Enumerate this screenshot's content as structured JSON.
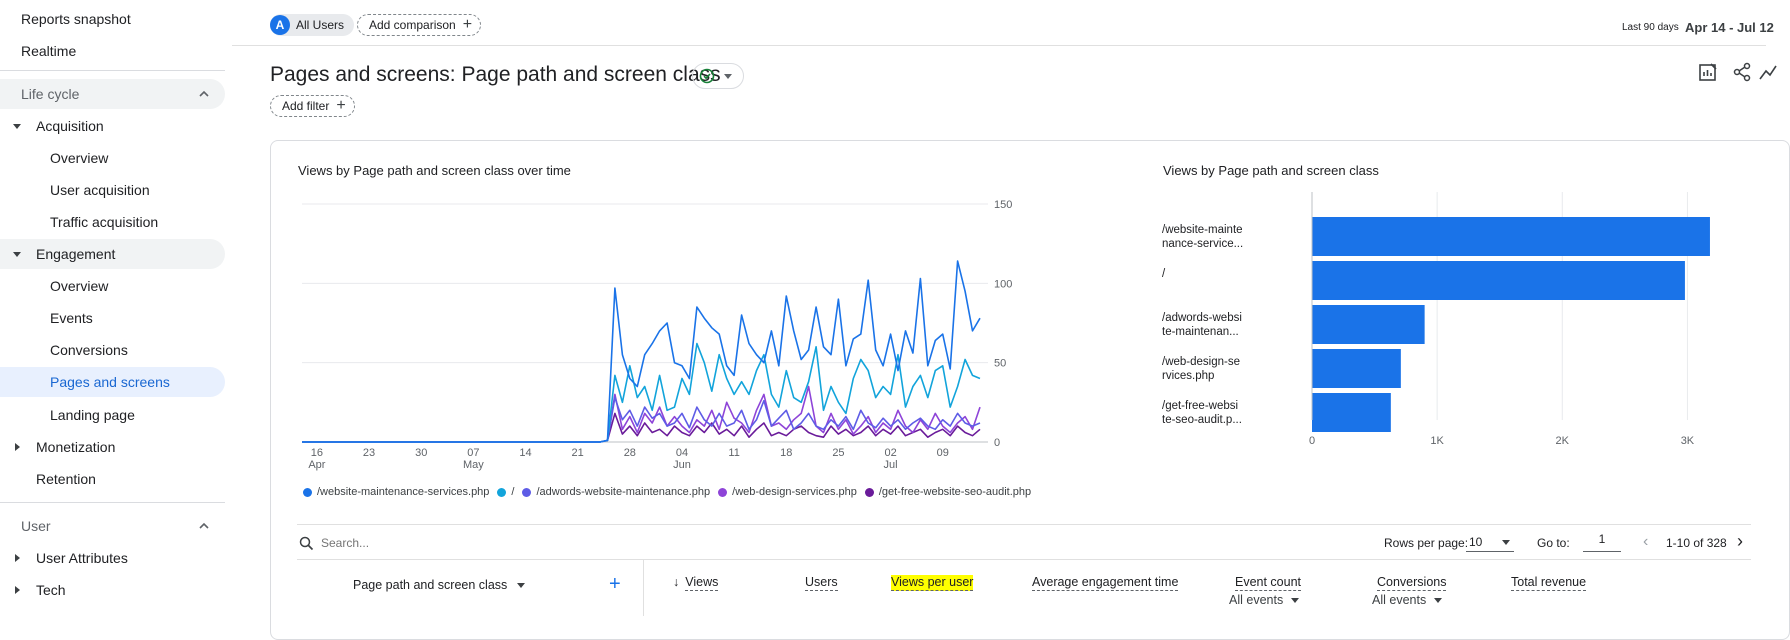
{
  "sidebar": {
    "reports_snapshot": "Reports snapshot",
    "realtime": "Realtime",
    "lifecycle_label": "Life cycle",
    "acquisition": "Acquisition",
    "acq_overview": "Overview",
    "user_acquisition": "User acquisition",
    "traffic_acquisition": "Traffic acquisition",
    "engagement": "Engagement",
    "eng_overview": "Overview",
    "events": "Events",
    "conversions": "Conversions",
    "pages_and_screens": "Pages and screens",
    "landing_page": "Landing page",
    "monetization": "Monetization",
    "retention": "Retention",
    "user_label": "User",
    "user_attributes": "User Attributes",
    "tech": "Tech"
  },
  "header": {
    "segment_avatar": "A",
    "segment_label": "All Users",
    "add_comparison": "Add comparison",
    "range_label": "Last 90 days",
    "range_value": "Apr 14 - Jul 12"
  },
  "page": {
    "title": "Pages and screens: Page path and screen class",
    "add_filter": "Add filter"
  },
  "line_chart": {
    "title": "Views by Page path and screen class over time",
    "y_ticks": [
      "150",
      "100",
      "50",
      "0"
    ],
    "x_ticks": [
      {
        "day": "16",
        "month": "Apr"
      },
      {
        "day": "23",
        "month": ""
      },
      {
        "day": "30",
        "month": ""
      },
      {
        "day": "07",
        "month": "May"
      },
      {
        "day": "14",
        "month": ""
      },
      {
        "day": "21",
        "month": ""
      },
      {
        "day": "28",
        "month": ""
      },
      {
        "day": "04",
        "month": "Jun"
      },
      {
        "day": "11",
        "month": ""
      },
      {
        "day": "18",
        "month": ""
      },
      {
        "day": "25",
        "month": ""
      },
      {
        "day": "02",
        "month": "Jul"
      },
      {
        "day": "09",
        "month": ""
      }
    ],
    "legend": [
      {
        "name": "/website-maintenance-services.php",
        "color": "#1a73e8"
      },
      {
        "name": "/",
        "color": "#12a4db"
      },
      {
        "name": "/adwords-website-maintenance.php",
        "color": "#5e5ce6"
      },
      {
        "name": "/web-design-services.php",
        "color": "#8e44d8"
      },
      {
        "name": "/get-free-website-seo-audit.php",
        "color": "#6a1b9a"
      }
    ]
  },
  "bar_chart": {
    "title": "Views by Page path and screen class",
    "labels": [
      [
        "/website-mainte",
        "nance-service..."
      ],
      [
        "/",
        ""
      ],
      [
        "/adwords-websi",
        "te-maintenan..."
      ],
      [
        "/web-design-se",
        "rvices.php"
      ],
      [
        "/get-free-websi",
        "te-seo-audit.p..."
      ]
    ],
    "x_ticks": [
      "0",
      "1K",
      "2K",
      "3K"
    ],
    "color": "#1a73e8"
  },
  "chart_data": [
    {
      "type": "line",
      "title": "Views by Page path and screen class over time",
      "x_start": "2024-04-14",
      "x_end": "2024-07-12",
      "ylim": [
        0,
        150
      ],
      "series": [
        {
          "name": "/website-maintenance-services.php",
          "values": [
            0,
            0,
            0,
            0,
            0,
            0,
            0,
            0,
            0,
            0,
            0,
            0,
            0,
            0,
            0,
            0,
            0,
            0,
            0,
            0,
            0,
            0,
            0,
            0,
            0,
            0,
            0,
            0,
            0,
            0,
            0,
            0,
            0,
            0,
            0,
            0,
            0,
            0,
            0,
            0,
            0,
            1,
            97,
            55,
            40,
            35,
            55,
            62,
            70,
            75,
            50,
            48,
            40,
            85,
            78,
            72,
            68,
            48,
            42,
            80,
            62,
            55,
            50,
            70,
            48,
            92,
            70,
            52,
            58,
            85,
            60,
            55,
            90,
            48,
            65,
            68,
            102,
            58,
            48,
            68,
            45,
            70,
            56,
            103,
            48,
            64,
            68,
            46,
            114,
            95,
            70,
            78
          ]
        },
        {
          "name": "/",
          "values": [
            0,
            0,
            0,
            0,
            0,
            0,
            0,
            0,
            0,
            0,
            0,
            0,
            0,
            0,
            0,
            0,
            0,
            0,
            0,
            0,
            0,
            0,
            0,
            0,
            0,
            0,
            0,
            0,
            0,
            0,
            0,
            0,
            0,
            0,
            0,
            0,
            0,
            0,
            0,
            0,
            0,
            1,
            42,
            25,
            48,
            28,
            35,
            20,
            42,
            20,
            22,
            40,
            30,
            62,
            50,
            32,
            55,
            40,
            30,
            38,
            30,
            45,
            55,
            30,
            22,
            45,
            28,
            25,
            38,
            60,
            20,
            35,
            25,
            18,
            40,
            52,
            45,
            28,
            35,
            30,
            55,
            22,
            35,
            42,
            28,
            45,
            48,
            22,
            35,
            52,
            42,
            40
          ]
        },
        {
          "name": "/adwords-website-maintenance.php",
          "values": [
            0,
            0,
            0,
            0,
            0,
            0,
            0,
            0,
            0,
            0,
            0,
            0,
            0,
            0,
            0,
            0,
            0,
            0,
            0,
            0,
            0,
            0,
            0,
            0,
            0,
            0,
            0,
            0,
            0,
            0,
            0,
            0,
            0,
            0,
            0,
            0,
            0,
            0,
            0,
            0,
            0,
            1,
            28,
            14,
            20,
            10,
            22,
            15,
            18,
            10,
            12,
            18,
            9,
            22,
            14,
            10,
            18,
            10,
            12,
            20,
            8,
            14,
            26,
            10,
            15,
            20,
            8,
            12,
            18,
            10,
            8,
            14,
            10,
            16,
            8,
            20,
            12,
            9,
            15,
            10,
            14,
            8,
            12,
            15,
            10,
            8,
            14,
            10,
            18,
            12,
            10,
            12
          ]
        },
        {
          "name": "/web-design-services.php",
          "values": [
            0,
            0,
            0,
            0,
            0,
            0,
            0,
            0,
            0,
            0,
            0,
            0,
            0,
            0,
            0,
            0,
            0,
            0,
            0,
            0,
            0,
            0,
            0,
            0,
            0,
            0,
            0,
            0,
            0,
            0,
            0,
            0,
            0,
            0,
            0,
            0,
            0,
            0,
            0,
            0,
            0,
            1,
            30,
            8,
            16,
            6,
            18,
            12,
            22,
            10,
            16,
            10,
            6,
            14,
            10,
            20,
            8,
            25,
            15,
            12,
            6,
            20,
            30,
            10,
            12,
            8,
            14,
            18,
            35,
            10,
            6,
            18,
            8,
            14,
            5,
            10,
            16,
            6,
            12,
            8,
            20,
            10,
            6,
            14,
            8,
            18,
            10,
            6,
            12,
            16,
            8,
            22
          ]
        },
        {
          "name": "/get-free-website-seo-audit.php",
          "values": [
            0,
            0,
            0,
            0,
            0,
            0,
            0,
            0,
            0,
            0,
            0,
            0,
            0,
            0,
            0,
            0,
            0,
            0,
            0,
            0,
            0,
            0,
            0,
            0,
            0,
            0,
            0,
            0,
            0,
            0,
            0,
            0,
            0,
            0,
            0,
            0,
            0,
            0,
            0,
            0,
            0,
            1,
            18,
            5,
            10,
            4,
            12,
            6,
            8,
            4,
            10,
            6,
            4,
            10,
            6,
            12,
            5,
            8,
            4,
            10,
            3,
            8,
            12,
            4,
            6,
            4,
            8,
            10,
            6,
            4,
            3,
            10,
            5,
            8,
            4,
            6,
            10,
            4,
            8,
            5,
            10,
            4,
            6,
            8,
            3,
            6,
            8,
            4,
            10,
            6,
            4,
            8
          ]
        }
      ]
    },
    {
      "type": "bar",
      "title": "Views by Page path and screen class",
      "categories": [
        "/website-maintenance-services.php",
        "/",
        "/adwords-website-maintenance.php",
        "/web-design-services.php",
        "/get-free-website-seo-audit.php"
      ],
      "values": [
        3180,
        2980,
        900,
        710,
        630
      ],
      "xlim": [
        0,
        3500
      ]
    }
  ],
  "table": {
    "search_placeholder": "Search...",
    "rows_per_page_label": "Rows per page:",
    "rows_per_page_value": "10",
    "goto_label": "Go to:",
    "goto_value": "1",
    "pager_text": "1-10 of 328",
    "dimension_header": "Page path and screen class",
    "columns": {
      "views": "Views",
      "users": "Users",
      "views_per_user": "Views per user",
      "avg_engagement": "Average engagement time",
      "event_count": "Event count",
      "conversions": "Conversions",
      "total_revenue": "Total revenue"
    },
    "event_filter": "All events",
    "conversion_filter": "All events"
  }
}
